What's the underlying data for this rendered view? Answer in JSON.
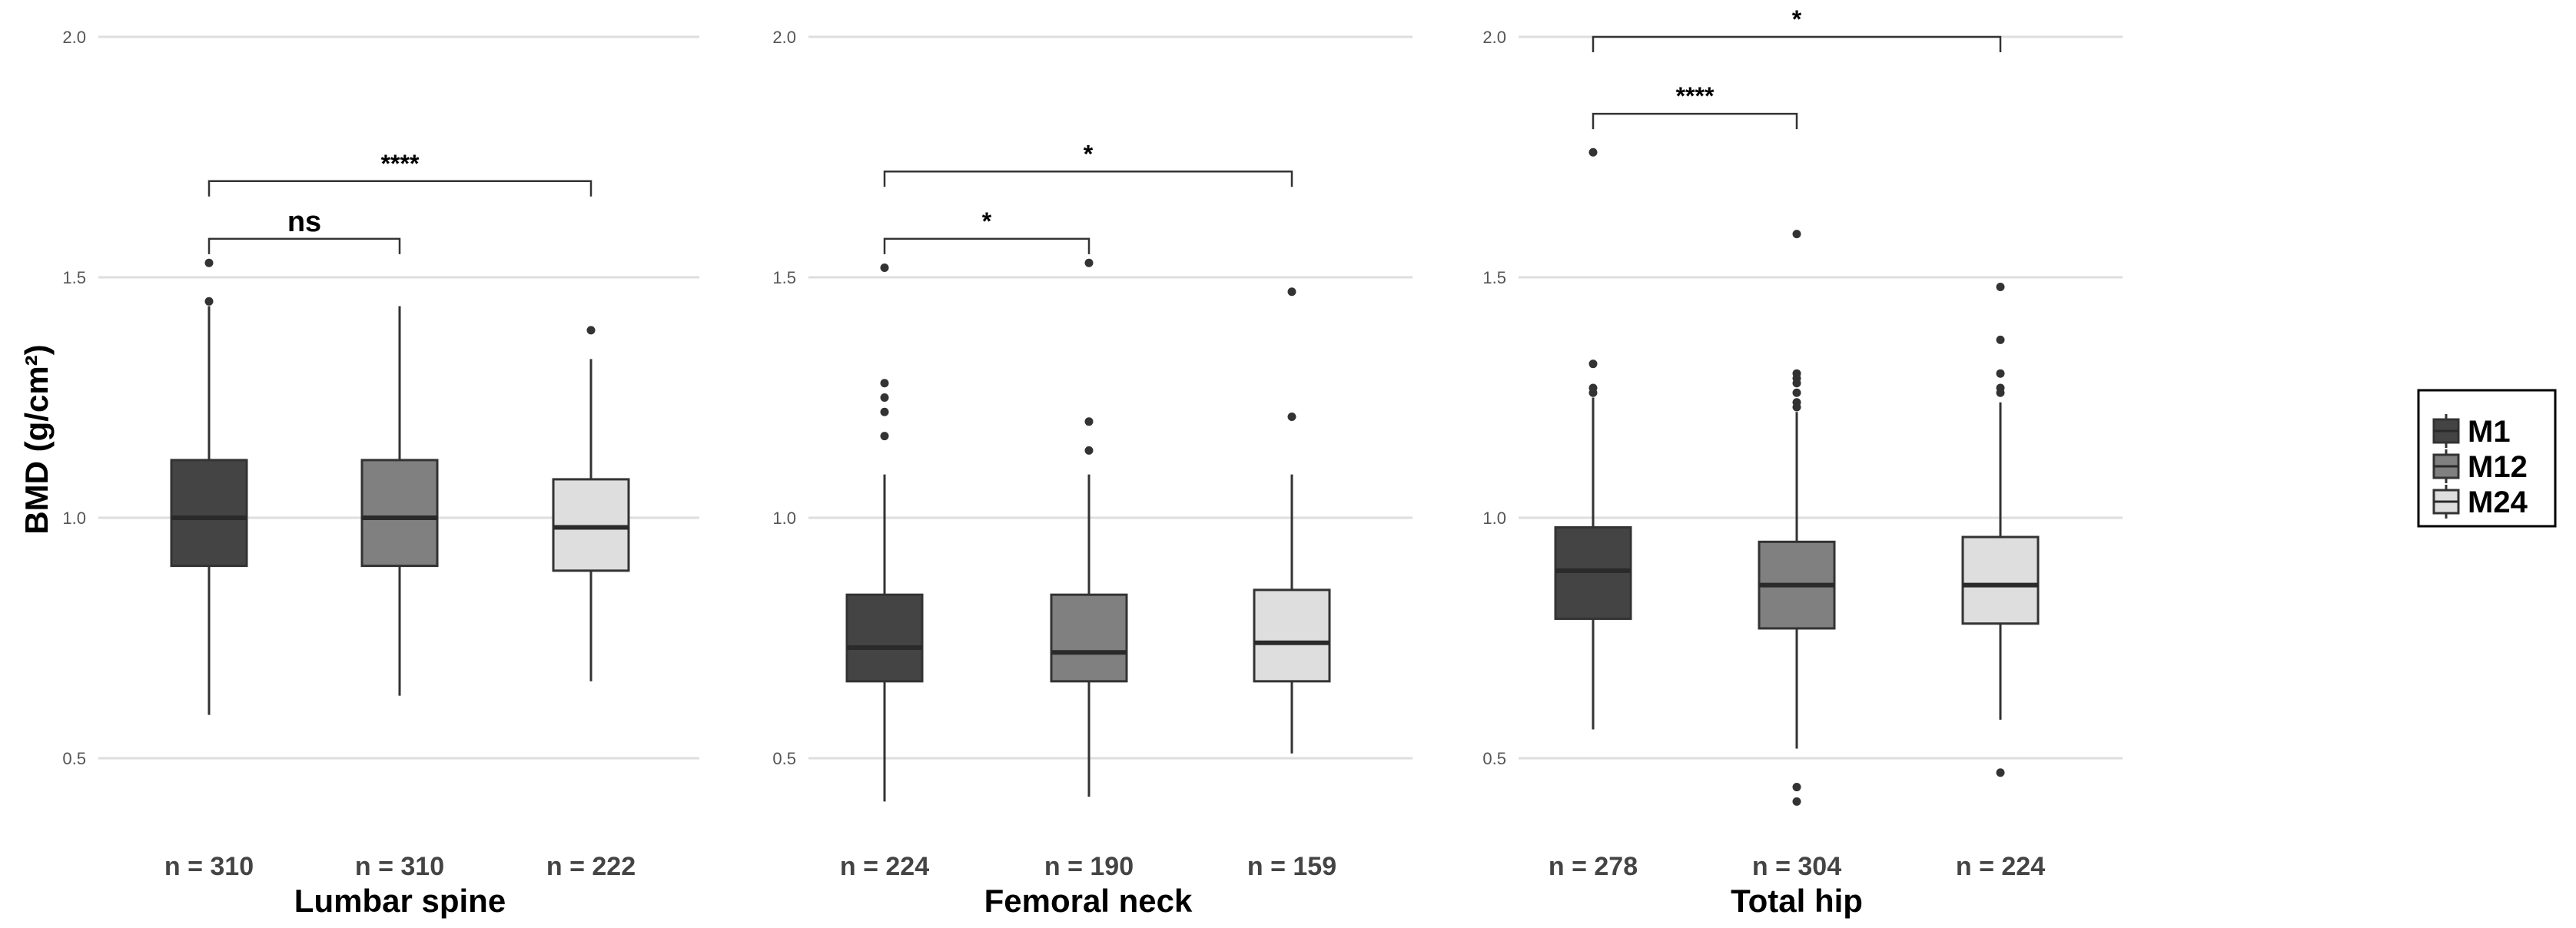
{
  "chart_data": {
    "type": "boxplot",
    "ylabel": "BMD (g/cm²)",
    "ylim": [
      0.3,
      2.05
    ],
    "yticks": [
      {
        "value": 0.5,
        "label": "0.5"
      },
      {
        "value": 1.0,
        "label": "1.0"
      },
      {
        "value": 1.5,
        "label": "1.5"
      },
      {
        "value": 2.0,
        "label": "2.0"
      }
    ],
    "groups": [
      {
        "name": "M1",
        "color": "#444444"
      },
      {
        "name": "M12",
        "color": "#808080"
      },
      {
        "name": "M24",
        "color": "#dedede"
      }
    ],
    "legend_position": "right",
    "facets": [
      {
        "title": "Lumbar spine",
        "boxes": [
          {
            "group": "M1",
            "n_label": "n = 310",
            "whisker_low": 0.59,
            "q1": 0.9,
            "median": 1.0,
            "q3": 1.12,
            "whisker_high": 1.44,
            "outliers": [
              1.45,
              1.53
            ]
          },
          {
            "group": "M12",
            "n_label": "n = 310",
            "whisker_low": 0.63,
            "q1": 0.9,
            "median": 1.0,
            "q3": 1.12,
            "whisker_high": 1.44,
            "outliers": []
          },
          {
            "group": "M24",
            "n_label": "n = 222",
            "whisker_low": 0.66,
            "q1": 0.89,
            "median": 0.98,
            "q3": 1.08,
            "whisker_high": 1.33,
            "outliers": [
              1.39
            ]
          }
        ],
        "comparisons": [
          {
            "from": 0,
            "to": 1,
            "y": 1.58,
            "label": "ns"
          },
          {
            "from": 0,
            "to": 2,
            "y": 1.7,
            "label": "****"
          }
        ]
      },
      {
        "title": "Femoral neck",
        "boxes": [
          {
            "group": "M1",
            "n_label": "n = 224",
            "whisker_low": 0.41,
            "q1": 0.66,
            "median": 0.73,
            "q3": 0.84,
            "whisker_high": 1.09,
            "outliers": [
              1.17,
              1.22,
              1.25,
              1.28,
              1.52
            ]
          },
          {
            "group": "M12",
            "n_label": "n = 190",
            "whisker_low": 0.42,
            "q1": 0.66,
            "median": 0.72,
            "q3": 0.84,
            "whisker_high": 1.09,
            "outliers": [
              1.14,
              1.2,
              1.53
            ]
          },
          {
            "group": "M24",
            "n_label": "n = 159",
            "whisker_low": 0.51,
            "q1": 0.66,
            "median": 0.74,
            "q3": 0.85,
            "whisker_high": 1.09,
            "outliers": [
              1.21,
              1.47
            ]
          }
        ],
        "comparisons": [
          {
            "from": 0,
            "to": 1,
            "y": 1.58,
            "label": "*"
          },
          {
            "from": 0,
            "to": 2,
            "y": 1.72,
            "label": "*"
          }
        ]
      },
      {
        "title": "Total hip",
        "boxes": [
          {
            "group": "M1",
            "n_label": "n = 278",
            "whisker_low": 0.56,
            "q1": 0.79,
            "median": 0.89,
            "q3": 0.98,
            "whisker_high": 1.25,
            "outliers": [
              1.26,
              1.27,
              1.32,
              1.76
            ]
          },
          {
            "group": "M12",
            "n_label": "n = 304",
            "whisker_low": 0.52,
            "q1": 0.77,
            "median": 0.86,
            "q3": 0.95,
            "whisker_high": 1.22,
            "outliers": [
              0.41,
              0.44,
              1.23,
              1.24,
              1.26,
              1.28,
              1.29,
              1.3,
              1.59
            ]
          },
          {
            "group": "M24",
            "n_label": "n = 224",
            "whisker_low": 0.58,
            "q1": 0.78,
            "median": 0.86,
            "q3": 0.96,
            "whisker_high": 1.24,
            "outliers": [
              0.47,
              1.26,
              1.27,
              1.3,
              1.37,
              1.48
            ]
          }
        ],
        "comparisons": [
          {
            "from": 0,
            "to": 1,
            "y": 1.84,
            "label": "****"
          },
          {
            "from": 0,
            "to": 2,
            "y": 2.0,
            "label": "*"
          }
        ]
      }
    ]
  }
}
